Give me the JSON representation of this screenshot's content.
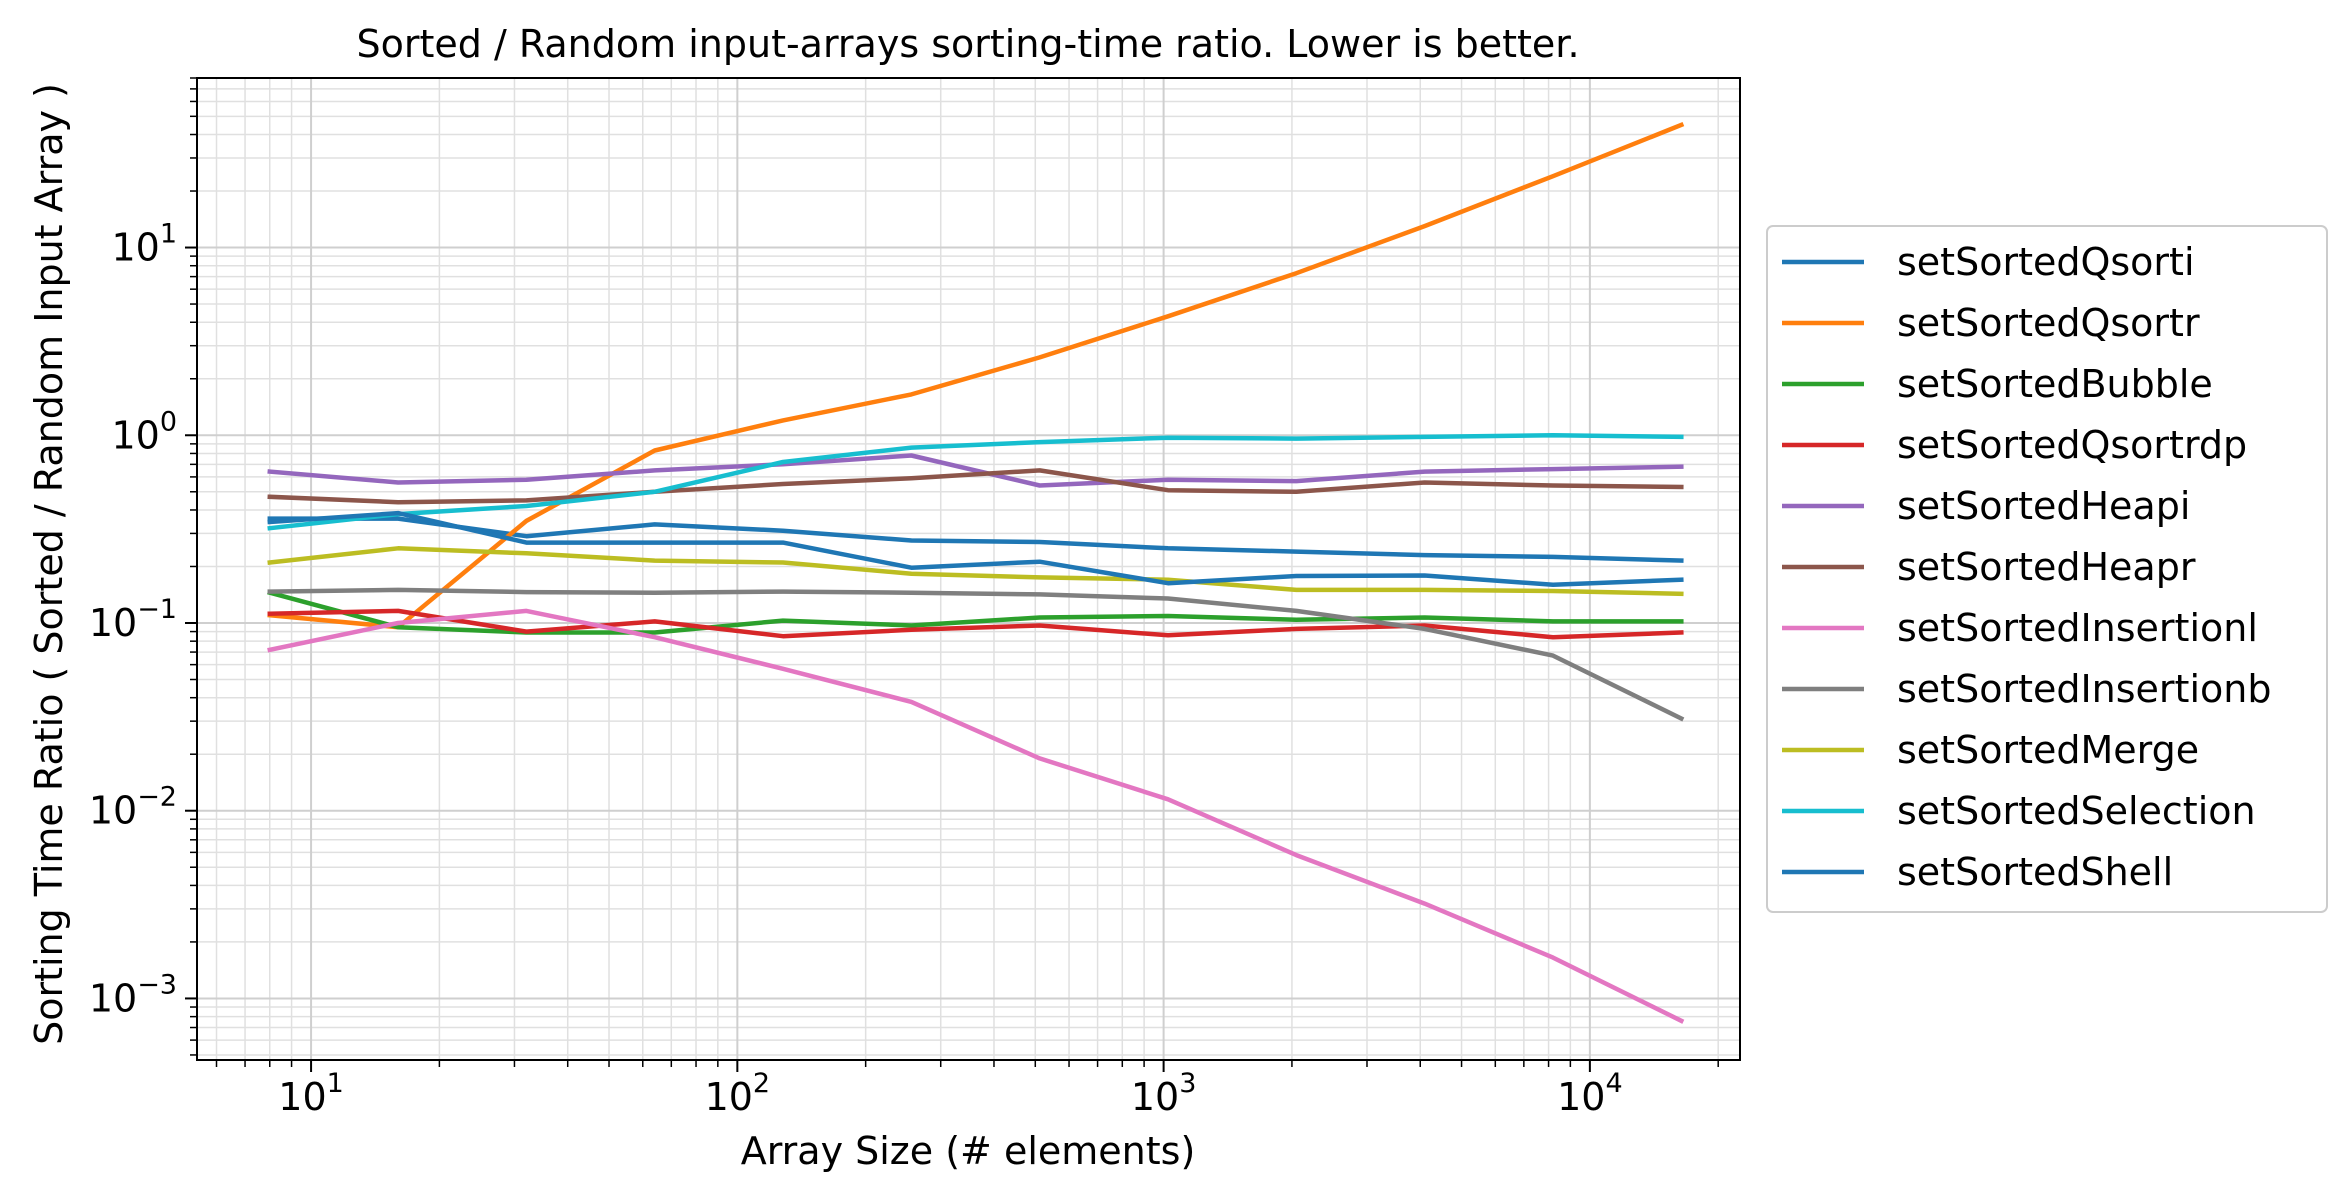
{
  "chart_data": {
    "type": "line",
    "title": "Sorted / Random input-arrays sorting-time ratio. Lower is better.",
    "xlabel": "Array Size (# elements)",
    "ylabel": "Sorting Time Ratio ( Sorted / Random Input Array )",
    "xscale": "log",
    "yscale": "log",
    "xlim": [
      5.4,
      22500
    ],
    "ylim": [
      0.00047,
      80
    ],
    "grid": true,
    "legend_position": "right, outside plot",
    "x_ticks": [
      {
        "value": 10,
        "base": "10",
        "exp": "1"
      },
      {
        "value": 100,
        "base": "10",
        "exp": "2"
      },
      {
        "value": 1000,
        "base": "10",
        "exp": "3"
      },
      {
        "value": 10000,
        "base": "10",
        "exp": "4"
      }
    ],
    "y_ticks": [
      {
        "value": 0.001,
        "base": "10",
        "exp": "−3"
      },
      {
        "value": 0.01,
        "base": "10",
        "exp": "−2"
      },
      {
        "value": 0.1,
        "base": "10",
        "exp": "−1"
      },
      {
        "value": 1,
        "base": "10",
        "exp": "0"
      },
      {
        "value": 10,
        "base": "10",
        "exp": "1"
      }
    ],
    "x": [
      8,
      16,
      32,
      64,
      128,
      256,
      512,
      1024,
      2048,
      4096,
      8192,
      16384
    ],
    "series": [
      {
        "name": "setSortedQsorti",
        "color": "#1f77b4",
        "values": [
          0.36,
          0.36,
          0.29,
          0.335,
          0.31,
          0.275,
          0.27,
          0.25,
          0.24,
          0.23,
          0.225,
          0.215
        ]
      },
      {
        "name": "setSortedQsortr",
        "color": "#ff7f0e",
        "values": [
          0.11,
          0.095,
          0.35,
          0.83,
          1.2,
          1.65,
          2.6,
          4.3,
          7.3,
          13,
          24,
          45
        ]
      },
      {
        "name": "setSortedBubble",
        "color": "#2ca02c",
        "values": [
          0.145,
          0.095,
          0.089,
          0.089,
          0.103,
          0.097,
          0.107,
          0.109,
          0.104,
          0.107,
          0.102,
          0.102
        ]
      },
      {
        "name": "setSortedQsortrdp",
        "color": "#d62728",
        "values": [
          0.112,
          0.116,
          0.09,
          0.102,
          0.085,
          0.092,
          0.097,
          0.086,
          0.093,
          0.097,
          0.084,
          0.089
        ]
      },
      {
        "name": "setSortedHeapi",
        "color": "#9467bd",
        "values": [
          0.64,
          0.56,
          0.58,
          0.65,
          0.7,
          0.78,
          0.54,
          0.58,
          0.57,
          0.64,
          0.66,
          0.68
        ]
      },
      {
        "name": "setSortedHeapr",
        "color": "#8c564b",
        "values": [
          0.47,
          0.44,
          0.45,
          0.5,
          0.55,
          0.59,
          0.65,
          0.51,
          0.5,
          0.56,
          0.54,
          0.53
        ]
      },
      {
        "name": "setSortedInsertionl",
        "color": "#e377c2",
        "values": [
          0.072,
          0.1,
          0.116,
          0.084,
          0.057,
          0.038,
          0.019,
          0.0115,
          0.0058,
          0.0032,
          0.00165,
          0.00076
        ]
      },
      {
        "name": "setSortedInsertionb",
        "color": "#7f7f7f",
        "values": [
          0.147,
          0.15,
          0.146,
          0.145,
          0.147,
          0.145,
          0.142,
          0.135,
          0.116,
          0.093,
          0.067,
          0.031
        ]
      },
      {
        "name": "setSortedMerge",
        "color": "#bcbd22",
        "values": [
          0.21,
          0.25,
          0.235,
          0.215,
          0.21,
          0.183,
          0.175,
          0.17,
          0.15,
          0.15,
          0.148,
          0.143
        ]
      },
      {
        "name": "setSortedSelection",
        "color": "#17becf",
        "values": [
          0.32,
          0.38,
          0.42,
          0.5,
          0.72,
          0.86,
          0.92,
          0.97,
          0.96,
          0.98,
          1.0,
          0.98
        ]
      },
      {
        "name": "setSortedShell",
        "color": "#1f77b4",
        "values": [
          0.345,
          0.385,
          0.268,
          0.268,
          0.268,
          0.197,
          0.212,
          0.163,
          0.178,
          0.179,
          0.16,
          0.17
        ]
      }
    ]
  }
}
